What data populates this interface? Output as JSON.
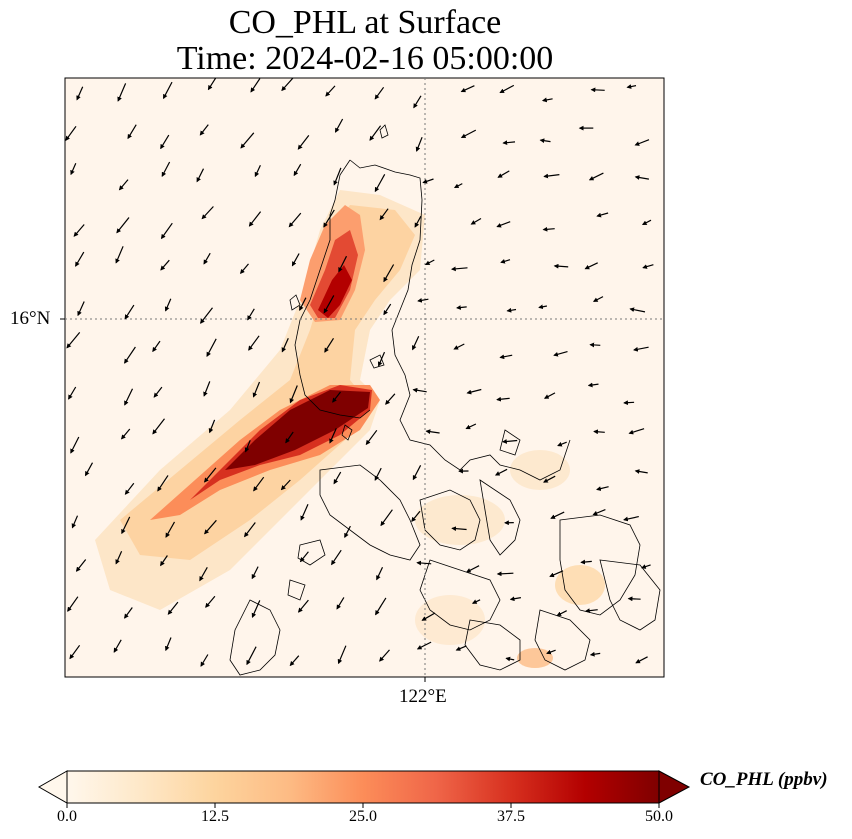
{
  "title": {
    "line1": "CO_PHL at Surface",
    "line2": "Time: 2024-02-16 05:00:00"
  },
  "axes": {
    "lat_label": "16°N",
    "lon_label": "122°E",
    "gridlines": "dotted"
  },
  "colorbar": {
    "label": "CO_PHL (ppbv)",
    "ticks": [
      "0.0",
      "12.5",
      "25.0",
      "37.5",
      "50.0"
    ],
    "min": 0,
    "max": 50,
    "extend": "both",
    "colormap": "OrRd",
    "colors": [
      "#fff7ec",
      "#fee8c8",
      "#fdd49e",
      "#fdbb84",
      "#fc8d59",
      "#ef6548",
      "#d7301f",
      "#b30000",
      "#7f0000"
    ]
  },
  "chart_data": {
    "type": "heatmap",
    "variable": "CO_PHL",
    "units": "ppbv",
    "overlays": [
      "wind vectors",
      "coastlines"
    ],
    "plumes": [
      {
        "area": "north of 16°N, west of 122°E",
        "level": "50+"
      },
      {
        "area": "south of 16°N, west of 122°E",
        "level": "50+"
      }
    ]
  }
}
